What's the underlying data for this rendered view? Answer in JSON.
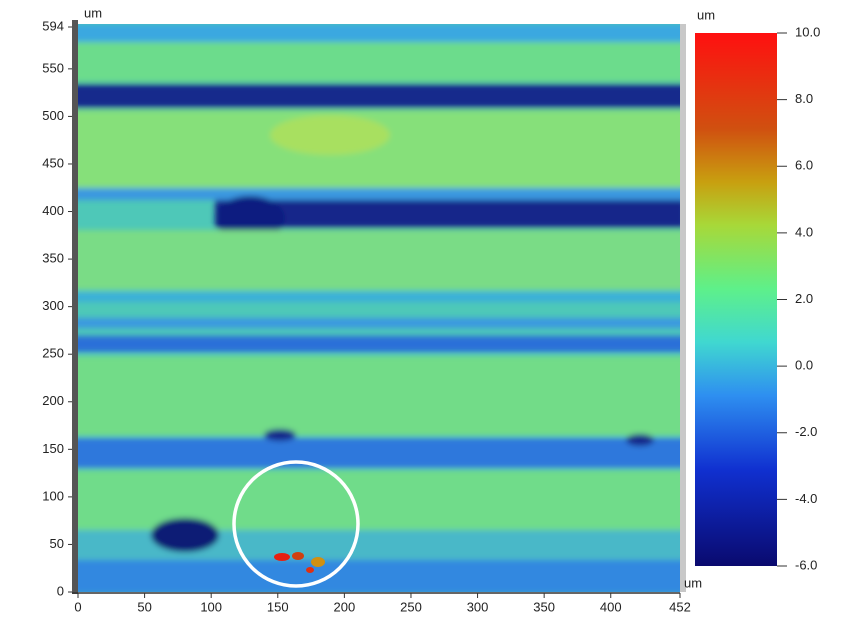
{
  "chart_data": {
    "type": "heatmap",
    "x_unit": "um",
    "y_unit": "um",
    "colorbar_unit": "um",
    "xlim": [
      0,
      452
    ],
    "ylim": [
      0,
      594
    ],
    "xticks": [
      0,
      50,
      100,
      150,
      200,
      250,
      300,
      350,
      400,
      452
    ],
    "yticks": [
      0,
      50,
      100,
      150,
      200,
      250,
      300,
      350,
      400,
      450,
      500,
      550,
      594
    ],
    "colorbar_lim": [
      -6,
      10
    ],
    "colorbar_ticks": [
      {
        "value": -6,
        "label": "-6.0"
      },
      {
        "value": -4,
        "label": "-4.0"
      },
      {
        "value": -2,
        "label": "-2.0"
      },
      {
        "value": 0,
        "label": "0.0"
      },
      {
        "value": 2,
        "label": "2.0"
      },
      {
        "value": 4,
        "label": "4.0"
      },
      {
        "value": 6,
        "label": "6.0"
      },
      {
        "value": 8,
        "label": "8.0"
      },
      {
        "value": 10,
        "label": "10.0"
      }
    ]
  }
}
